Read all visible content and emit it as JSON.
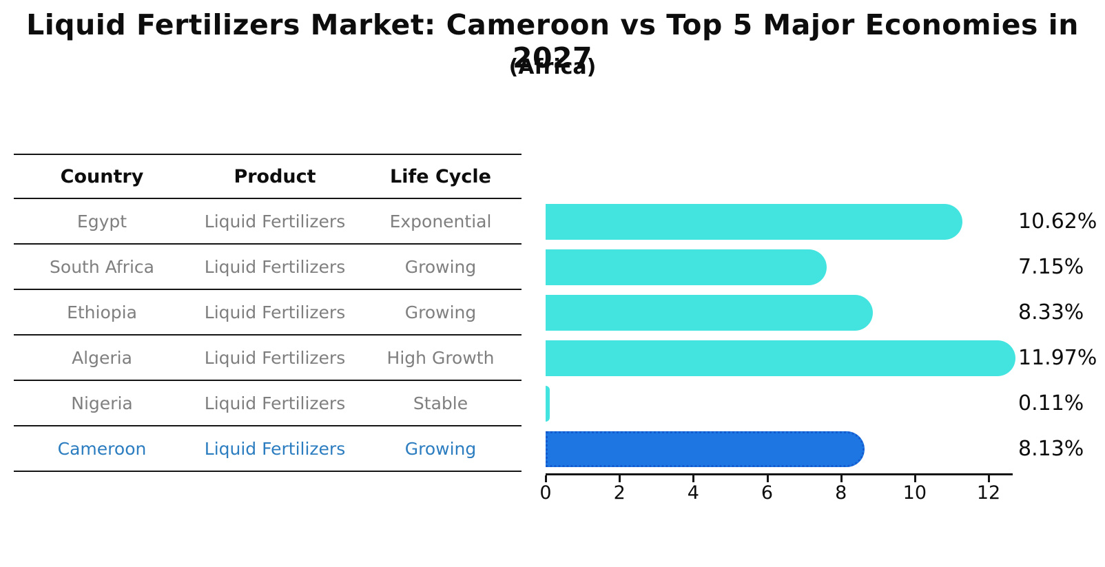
{
  "title": "Liquid Fertilizers Market: Cameroon vs Top 5 Major Economies in 2027",
  "subtitle": "(Africa)",
  "table": {
    "headers": [
      "Country",
      "Product",
      "Life Cycle"
    ],
    "rows": [
      {
        "country": "Egypt",
        "product": "Liquid Fertilizers",
        "life_cycle": "Exponential",
        "highlight": false
      },
      {
        "country": "South Africa",
        "product": "Liquid Fertilizers",
        "life_cycle": "Growing",
        "highlight": false
      },
      {
        "country": "Ethiopia",
        "product": "Liquid Fertilizers",
        "life_cycle": "Growing",
        "highlight": false
      },
      {
        "country": "Algeria",
        "product": "Liquid Fertilizers",
        "life_cycle": "High Growth",
        "highlight": false
      },
      {
        "country": "Nigeria",
        "product": "Liquid Fertilizers",
        "life_cycle": "Stable",
        "highlight": false
      },
      {
        "country": "Cameroon",
        "product": "Liquid Fertilizers",
        "life_cycle": "Growing",
        "highlight": true
      }
    ]
  },
  "chart_data": {
    "type": "bar",
    "orientation": "horizontal",
    "title": "Liquid Fertilizers Market: Cameroon vs Top 5 Major Economies in 2027",
    "subtitle": "(Africa)",
    "categories": [
      "Egypt",
      "South Africa",
      "Ethiopia",
      "Algeria",
      "Nigeria",
      "Cameroon"
    ],
    "values": [
      10.62,
      7.15,
      8.33,
      11.97,
      0.11,
      8.13
    ],
    "value_labels": [
      "10.62%",
      "7.15%",
      "8.33%",
      "11.97%",
      "0.11%",
      "8.13%"
    ],
    "xlabel": "",
    "ylabel": "",
    "xlim": [
      0,
      12.6
    ],
    "xticks": [
      0,
      2,
      4,
      6,
      8,
      10,
      12
    ],
    "grid": false,
    "legend": false,
    "highlight_index": 5,
    "bar_color": "#43e4df",
    "highlight_bar_color": "#1e76e2",
    "highlight_text_color": "#2b7dc0"
  }
}
